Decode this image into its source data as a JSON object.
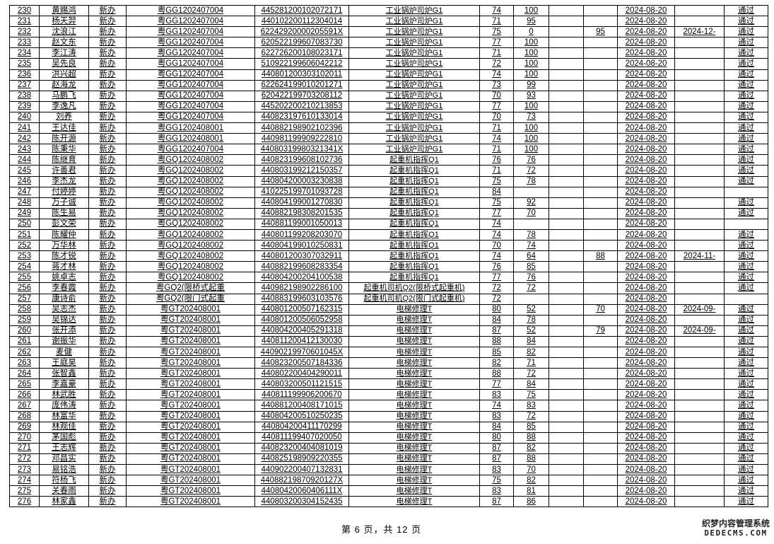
{
  "columns": [
    "no",
    "name",
    "type",
    "code",
    "id_number",
    "project",
    "theory",
    "practical",
    "blank",
    "retake",
    "date",
    "retake_date",
    "result"
  ],
  "rows": [
    [
      "230",
      "黄赐鸿",
      "新办",
      "粤GG1202407004",
      "445281200102072171",
      "工业锅炉司炉G1",
      "74",
      "100",
      "",
      "",
      "2024-08-20",
      "",
      "通过"
    ],
    [
      "231",
      "杨天羿",
      "新办",
      "粤GG1202407004",
      "440102200112304014",
      "工业锅炉司炉G1",
      "71",
      "95",
      "",
      "",
      "2024-08-20",
      "",
      "通过"
    ],
    [
      "232",
      "沈浪江",
      "新办",
      "粤GG1202407004",
      "62242920000205591X",
      "工业锅炉司炉G1",
      "75",
      "0",
      "",
      "95",
      "2024-08-20",
      "2024-12-",
      "通过"
    ],
    [
      "233",
      "赵文东",
      "新办",
      "粤GG1202407004",
      "620522199607083730",
      "工业锅炉司炉G1",
      "77",
      "100",
      "",
      "",
      "2024-08-20",
      "",
      "通过"
    ],
    [
      "234",
      "李江涛",
      "新办",
      "粤GG1202407004",
      "622726200108023171",
      "工业锅炉司炉G1",
      "71",
      "100",
      "",
      "",
      "2024-08-20",
      "",
      "通过"
    ],
    [
      "235",
      "吴先良",
      "新办",
      "粤GG1202407004",
      "510922199606042212",
      "工业锅炉司炉G1",
      "72",
      "100",
      "",
      "",
      "2024-08-20",
      "",
      "通过"
    ],
    [
      "236",
      "洪兴超",
      "新办",
      "粤GG1202407004",
      "440801200303102011",
      "工业锅炉司炉G1",
      "74",
      "100",
      "",
      "",
      "2024-08-20",
      "",
      "通过"
    ],
    [
      "237",
      "赵海龙",
      "新办",
      "粤GG1202407004",
      "622624199010201271",
      "工业锅炉司炉G1",
      "73",
      "99",
      "",
      "",
      "2024-08-20",
      "",
      "通过"
    ],
    [
      "238",
      "马鹏飞",
      "新办",
      "粤GG1202407004",
      "620422199703208112",
      "工业锅炉司炉G1",
      "70",
      "93",
      "",
      "",
      "2024-08-20",
      "",
      "通过"
    ],
    [
      "239",
      "李逸凡",
      "新办",
      "粤GG1202407004",
      "445202200210213853",
      "工业锅炉司炉G1",
      "77",
      "100",
      "",
      "",
      "2024-08-20",
      "",
      "通过"
    ],
    [
      "240",
      "刘养",
      "新办",
      "粤GG1202407004",
      "440823197610133014",
      "工业锅炉司炉G1",
      "70",
      "73",
      "",
      "",
      "2024-08-20",
      "",
      "通过"
    ],
    [
      "241",
      "王达佳",
      "新办",
      "粤GG1202408001",
      "440882198902102396",
      "工业锅炉司炉G1",
      "71",
      "100",
      "",
      "",
      "2024-08-20",
      "",
      "通过"
    ],
    [
      "242",
      "陈开源",
      "新办",
      "粤GG1202408001",
      "440981199909222810",
      "工业锅炉司炉G1",
      "74",
      "100",
      "",
      "",
      "2024-08-20",
      "",
      "通过"
    ],
    [
      "243",
      "陈秉华",
      "新办",
      "粤GG1202407004",
      "44080319980321341X",
      "工业锅炉司炉G1",
      "71",
      "100",
      "",
      "",
      "2024-08-20",
      "",
      "通过"
    ],
    [
      "244",
      "陈继育",
      "新办",
      "粤GQ1202408002",
      "440823199608102736",
      "起重机指挥Q1",
      "76",
      "76",
      "",
      "",
      "2024-08-20",
      "",
      "通过"
    ],
    [
      "245",
      "许善君",
      "新办",
      "粤GQ1202408002",
      "440803199212150357",
      "起重机指挥Q1",
      "71",
      "72",
      "",
      "",
      "2024-08-20",
      "",
      "通过"
    ],
    [
      "246",
      "李杰龙",
      "新办",
      "粤GQ1202408002",
      "440804200003230838",
      "起重机指挥Q1",
      "75",
      "78",
      "",
      "",
      "2024-08-20",
      "",
      "通过"
    ],
    [
      "247",
      "付婷婷",
      "新办",
      "粤GQ1202408002",
      "410225199701093728",
      "起重机指挥Q1",
      "84",
      "",
      "",
      "",
      "2024-08-20",
      "",
      ""
    ],
    [
      "248",
      "万子诚",
      "新办",
      "粤GQ1202408002",
      "440804199001270830",
      "起重机指挥Q1",
      "75",
      "92",
      "",
      "",
      "2024-08-20",
      "",
      "通过"
    ],
    [
      "249",
      "陈生易",
      "新办",
      "粤GQ1202408002",
      "440882198308201535",
      "起重机指挥Q1",
      "77",
      "70",
      "",
      "",
      "2024-08-20",
      "",
      "通过"
    ],
    [
      "250",
      "彭文荣",
      "新办",
      "粤GQ1202408002",
      "440881199001050013",
      "起重机指挥Q1",
      "74",
      "",
      "",
      "",
      "2024-08-20",
      "",
      ""
    ],
    [
      "251",
      "陈耀仲",
      "新办",
      "粤GQ1202408002",
      "440801199208203070",
      "起重机指挥Q1",
      "74",
      "78",
      "",
      "",
      "2024-08-20",
      "",
      "通过"
    ],
    [
      "252",
      "万华林",
      "新办",
      "粤GQ1202408002",
      "440804199010250831",
      "起重机指挥Q1",
      "70",
      "74",
      "",
      "",
      "2024-08-20",
      "",
      "通过"
    ],
    [
      "253",
      "陈才锐",
      "新办",
      "粤GQ1202408002",
      "440801200307032911",
      "起重机指挥Q1",
      "74",
      "64",
      "",
      "88",
      "2024-08-20",
      "2024-11-",
      "通过"
    ],
    [
      "254",
      "蒋才林",
      "新办",
      "粤GQ1202408002",
      "440882199608283354",
      "起重机指挥Q1",
      "76",
      "85",
      "",
      "",
      "2024-08-20",
      "",
      "通过"
    ],
    [
      "255",
      "姚卓志",
      "新办",
      "粤GQ1202408002",
      "440804200204100538",
      "起重机指挥Q1",
      "77",
      "76",
      "",
      "",
      "2024-08-20",
      "",
      "通过"
    ],
    [
      "256",
      "李春霞",
      "新办",
      "粤GQ2(限桥式起重",
      "440982198902286100",
      "起重机司机Q2(限桥式起重机)",
      "72",
      "72",
      "",
      "",
      "2024-08-20",
      "",
      "通过"
    ],
    [
      "257",
      "康诗俞",
      "新办",
      "粤GQ2(限门式起重",
      "440883199603103576",
      "起重机司机Q2(限门式起重机)",
      "72",
      "",
      "",
      "",
      "2024-08-20",
      "",
      ""
    ],
    [
      "258",
      "吴志杰",
      "新办",
      "粤GT202408001",
      "440801200507162315",
      "电梯修理T",
      "80",
      "52",
      "",
      "70",
      "2024-08-20",
      "2024-09-",
      "通过"
    ],
    [
      "259",
      "吴锦达",
      "新办",
      "粤GT202408001",
      "440801200506052958",
      "电梯修理T",
      "84",
      "78",
      "",
      "",
      "2024-08-20",
      "",
      "通过"
    ],
    [
      "260",
      "张开添",
      "新办",
      "粤GT202408001",
      "440804200405291318",
      "电梯修理T",
      "87",
      "52",
      "",
      "79",
      "2024-08-20",
      "2024-09-",
      "通过"
    ],
    [
      "261",
      "谢振华",
      "新办",
      "粤GT202408001",
      "440811200412130030",
      "电梯修理T",
      "88",
      "84",
      "",
      "",
      "2024-08-20",
      "",
      "通过"
    ],
    [
      "262",
      "麦健",
      "新办",
      "粤GT202408001",
      "44090219970601045X",
      "电梯修理T",
      "85",
      "82",
      "",
      "",
      "2024-08-20",
      "",
      "通过"
    ],
    [
      "263",
      "王庭昊",
      "新办",
      "粤GT202408001",
      "440823200507184336",
      "电梯修理T",
      "82",
      "71",
      "",
      "",
      "2024-08-20",
      "",
      "通过"
    ],
    [
      "264",
      "张智鑫",
      "新办",
      "粤GT202408001",
      "440802200404290011",
      "电梯修理T",
      "88",
      "72",
      "",
      "",
      "2024-08-20",
      "",
      "通过"
    ],
    [
      "265",
      "李嘉豪",
      "新办",
      "粤GT202408001",
      "440803200501121515",
      "电梯修理T",
      "77",
      "84",
      "",
      "",
      "2024-08-20",
      "",
      "通过"
    ],
    [
      "266",
      "林武胜",
      "新办",
      "粤GT202408001",
      "440811199906200670",
      "电梯修理T",
      "83",
      "75",
      "",
      "",
      "2024-08-20",
      "",
      "通过"
    ],
    [
      "267",
      "庞伟涛",
      "新办",
      "粤GT202408001",
      "440881200408171015",
      "电梯修理T",
      "74",
      "83",
      "",
      "",
      "2024-08-20",
      "",
      "通过"
    ],
    [
      "268",
      "林富华",
      "新办",
      "粤GT202408001",
      "440804200510250235",
      "电梯修理T",
      "83",
      "72",
      "",
      "",
      "2024-08-20",
      "",
      "通过"
    ],
    [
      "269",
      "林观佳",
      "新办",
      "粤GT202408001",
      "440804200411170299",
      "电梯修理T",
      "84",
      "85",
      "",
      "",
      "2024-08-20",
      "",
      "通过"
    ],
    [
      "270",
      "茅国彪",
      "新办",
      "粤GT202408001",
      "440811199407020050",
      "电梯修理T",
      "80",
      "88",
      "",
      "",
      "2024-08-20",
      "",
      "通过"
    ],
    [
      "271",
      "王志辉",
      "新办",
      "粤GT202408001",
      "440823200404081019",
      "电梯修理T",
      "87",
      "82",
      "",
      "",
      "2024-08-20",
      "",
      "通过"
    ],
    [
      "272",
      "邓昌实",
      "新办",
      "粤GT202408001",
      "440825198909220355",
      "电梯修理T",
      "87",
      "88",
      "",
      "",
      "2024-08-20",
      "",
      "通过"
    ],
    [
      "273",
      "易铭浩",
      "新办",
      "粤GT202408001",
      "440902200407132831",
      "电梯修理T",
      "83",
      "70",
      "",
      "",
      "2024-08-20",
      "",
      "通过"
    ],
    [
      "274",
      "符杨飞",
      "新办",
      "粤GT202408001",
      "44088219870920127X",
      "电梯修理T",
      "75",
      "82",
      "",
      "",
      "2024-08-20",
      "",
      "通过"
    ],
    [
      "275",
      "关春雨",
      "新办",
      "粤GT202408001",
      "44080420060406111X",
      "电梯修理T",
      "83",
      "81",
      "",
      "",
      "2024-08-20",
      "",
      "通过"
    ],
    [
      "276",
      "林家鑫",
      "新办",
      "粤GT202408001",
      "440803200304152435",
      "电梯修理T",
      "87",
      "86",
      "",
      "",
      "2024-08-20",
      "",
      "通过"
    ]
  ],
  "footer": {
    "page_label": "第 6 页，共 12 页"
  },
  "watermark": {
    "line1": "织梦内容管理系统",
    "line2": "DEDECMS.COM"
  }
}
